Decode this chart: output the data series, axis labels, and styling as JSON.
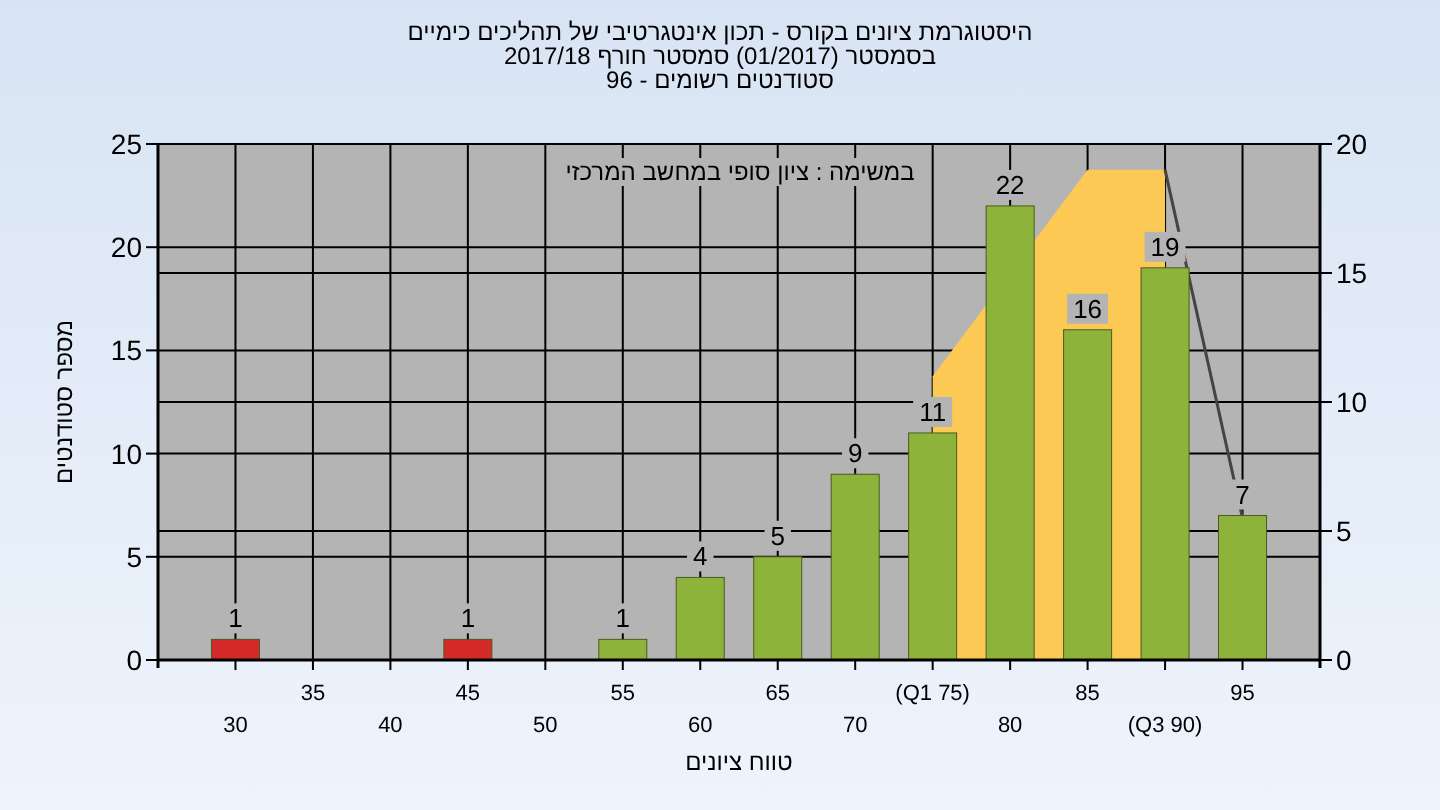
{
  "chart_data": {
    "type": "bar",
    "title": "היסטוגרמת ציונים בקורס - תכון אינטגרטיבי של תהליכים כימיים",
    "subtitle": "בסמסטר  (01/2017)  סמסטר חורף 2017/18\nסטודנטים רשומים - 96",
    "xlabel": "טווח ציונים",
    "ylabel": "מספר סטודנטים",
    "annotations": [
      "במשימה : ציון סופי במחשב המרכזי"
    ],
    "categories": [
      "30",
      "35",
      "40",
      "45",
      "50",
      "55",
      "60",
      "65",
      "70",
      "(Q1 75)",
      "80",
      "85",
      "(Q3 90)",
      "95"
    ],
    "values": [
      1,
      null,
      null,
      1,
      null,
      1,
      4,
      5,
      9,
      11,
      22,
      16,
      19,
      7
    ],
    "colors": [
      "#d42a2a",
      null,
      null,
      "#d42a2a",
      null,
      "#8db33a",
      "#8db33a",
      "#8db33a",
      "#8db33a",
      "#8db33a",
      "#8db33a",
      "#8db33a",
      "#8db33a",
      "#8db33a"
    ],
    "value_labels": [
      "1",
      null,
      null,
      "1",
      null,
      "1",
      "4",
      "5",
      "9",
      "11",
      "22",
      "16",
      "19",
      "7"
    ],
    "ylim": [
      0,
      25
    ],
    "yticks": [
      0,
      5,
      10,
      15,
      20,
      25
    ],
    "y2lim": [
      0,
      20
    ],
    "y2ticks": [
      0,
      5,
      10,
      15,
      20
    ],
    "grid": true,
    "series": [
      {
        "type": "area",
        "axis": "y2",
        "color": "#fdc955",
        "x": [
          "(Q1 75)",
          "85",
          "(Q3 90)"
        ],
        "values": [
          11,
          19,
          19
        ]
      },
      {
        "type": "line",
        "axis": "y2",
        "color": "#444444",
        "x": [
          "(Q3 90)",
          "95"
        ],
        "values": [
          19,
          5.5
        ]
      }
    ]
  }
}
